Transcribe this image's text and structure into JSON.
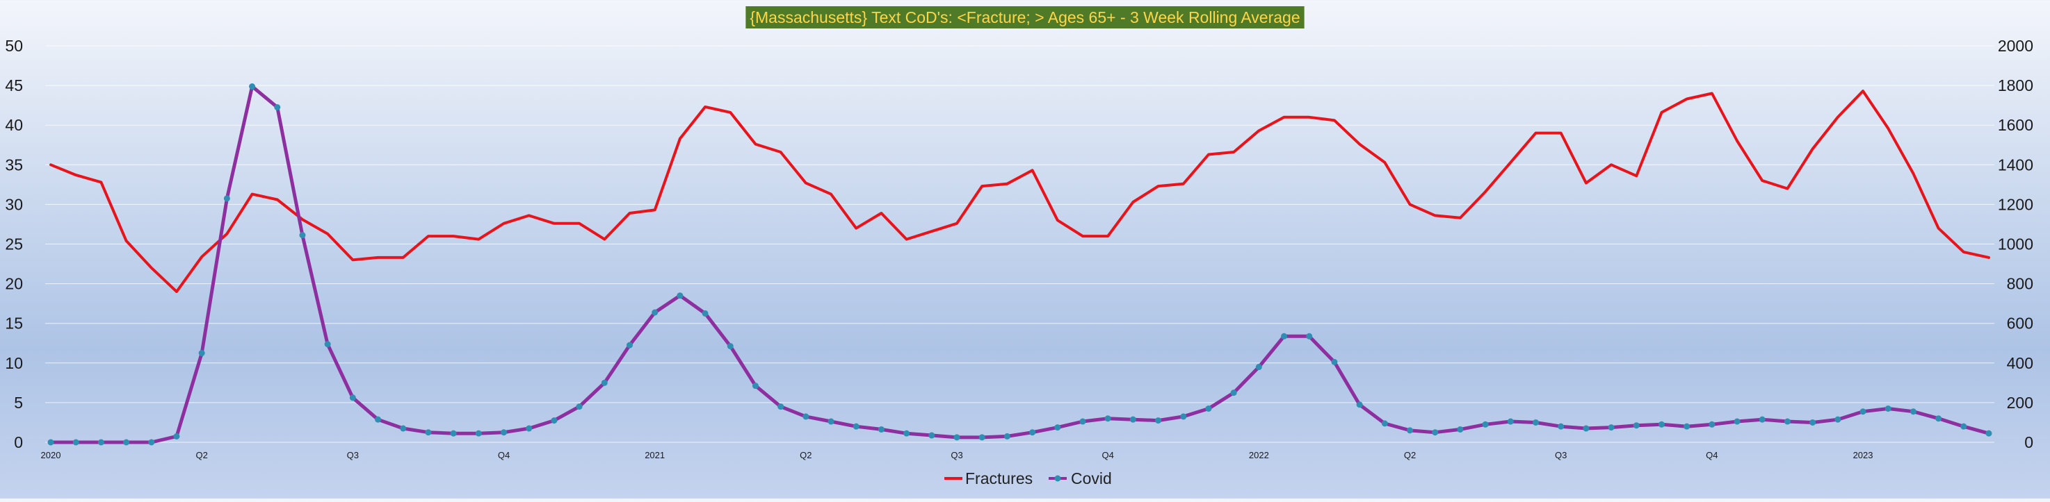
{
  "chart_data": {
    "type": "line",
    "title": "{Massachusetts}  Text CoD's: <Fracture; > Ages 65+ - 3 Week Rolling Average",
    "title_style": {
      "background": "#4f7a28",
      "color": "#ffd54a"
    },
    "x_tick_labels": [
      "2020",
      "Q2",
      "Q3",
      "Q4",
      "2021",
      "Q2",
      "Q3",
      "Q4",
      "2022",
      "Q2",
      "Q3",
      "Q4",
      "2023"
    ],
    "x_tick_positions": [
      0,
      6,
      12,
      18,
      24,
      30,
      36,
      42,
      48,
      54,
      60,
      66,
      72
    ],
    "n_points": 78,
    "y_left": {
      "min": 0,
      "max": 50,
      "ticks": [
        0,
        5,
        10,
        15,
        20,
        25,
        30,
        35,
        40,
        45,
        50
      ]
    },
    "y_right": {
      "min": 0,
      "max": 2000,
      "ticks": [
        0,
        200,
        400,
        600,
        800,
        1000,
        1200,
        1400,
        1600,
        1800,
        2000
      ]
    },
    "grid": true,
    "legend_position": "bottom-center",
    "series": [
      {
        "name": "Fractures",
        "axis": "left",
        "color": "#e8141c",
        "markers": false,
        "values": [
          35,
          33.7,
          32.8,
          25.4,
          22,
          19,
          23.4,
          26.3,
          31.3,
          30.6,
          28.1,
          26.3,
          23,
          23.3,
          23.3,
          26,
          26,
          25.6,
          27.6,
          28.6,
          27.6,
          27.6,
          25.6,
          28.9,
          29.3,
          38.3,
          42.3,
          41.6,
          37.6,
          36.6,
          32.7,
          31.3,
          27,
          28.9,
          25.6,
          26.6,
          27.6,
          32.3,
          32.6,
          34.3,
          28,
          26,
          26,
          30.3,
          32.3,
          32.6,
          36.3,
          36.6,
          39.3,
          41,
          41,
          40.6,
          37.6,
          35.3,
          30,
          28.6,
          28.3,
          31.6,
          35.3,
          39,
          39,
          32.7,
          35,
          33.6,
          41.6,
          43.3,
          44,
          38,
          33,
          32,
          37,
          41,
          44.3,
          39.6,
          33.9,
          27,
          24,
          23.3
        ]
      },
      {
        "name": "Covid",
        "axis": "right",
        "color": "#8e2fa0",
        "markers": true,
        "values": [
          0,
          0,
          0,
          0,
          0,
          30,
          450,
          1230,
          1795,
          1690,
          1045,
          495,
          225,
          115,
          70,
          50,
          45,
          45,
          50,
          70,
          110,
          180,
          300,
          490,
          655,
          740,
          650,
          485,
          285,
          180,
          130,
          105,
          80,
          65,
          45,
          35,
          25,
          25,
          30,
          50,
          75,
          105,
          120,
          115,
          110,
          130,
          170,
          250,
          380,
          535,
          535,
          405,
          190,
          95,
          60,
          50,
          65,
          90,
          105,
          100,
          80,
          70,
          75,
          85,
          90,
          80,
          90,
          105,
          115,
          105,
          100,
          115,
          155,
          170,
          155,
          120,
          80,
          45
        ]
      }
    ]
  }
}
